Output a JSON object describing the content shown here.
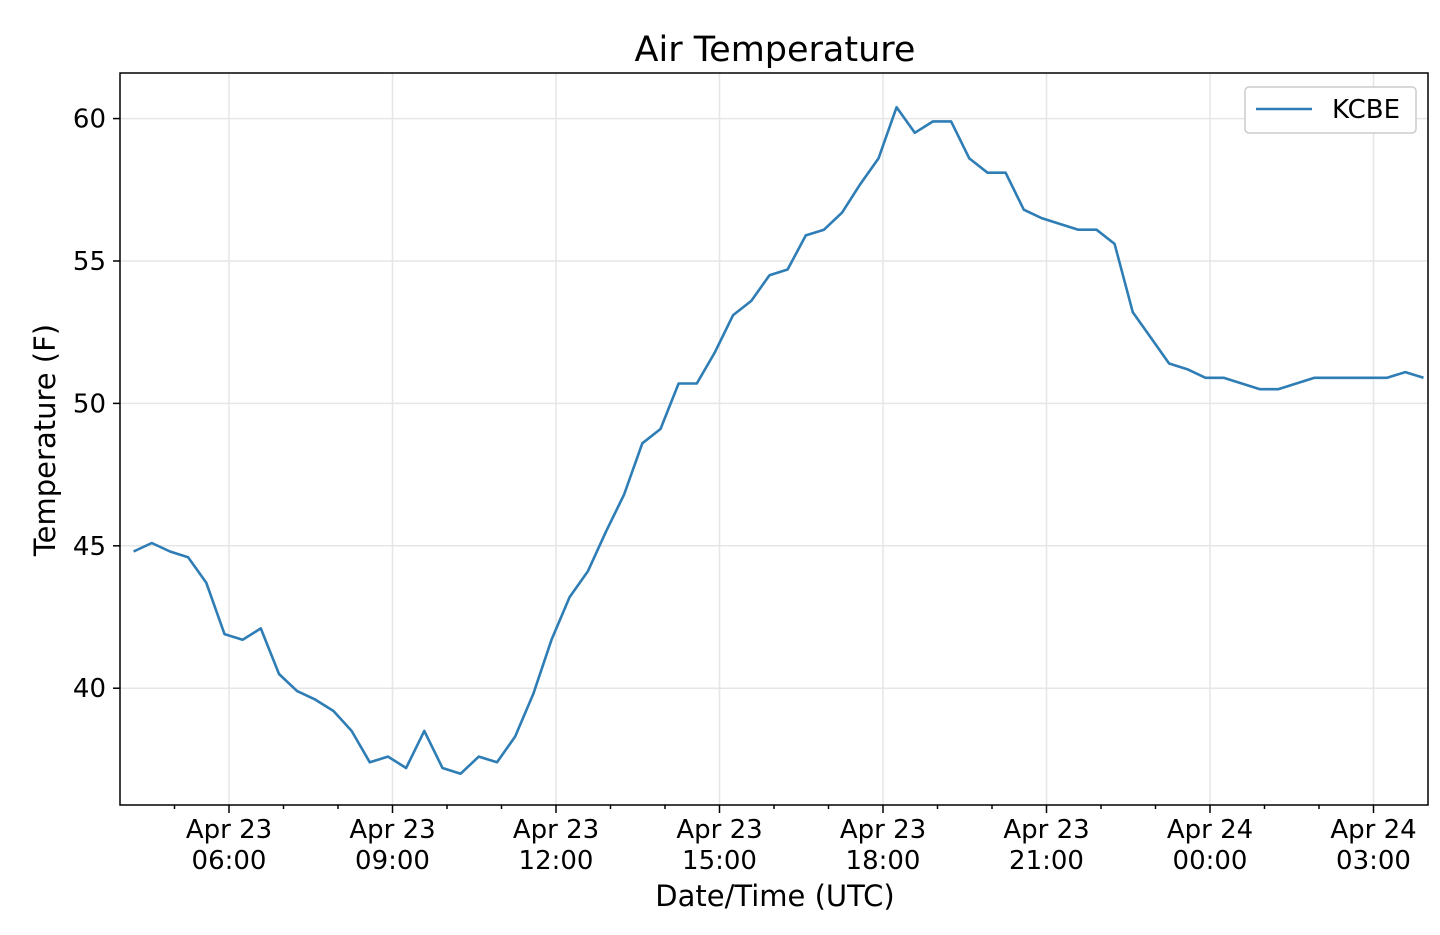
{
  "chart_data": {
    "type": "line",
    "title": "Air Temperature",
    "xlabel": "Date/Time (UTC)",
    "ylabel": "Temperature (F)",
    "x_type": "datetime",
    "xlim": [
      "2023-04-23T04:00",
      "2023-04-24T04:00"
    ],
    "ylim": [
      35.9,
      61.6
    ],
    "grid": true,
    "legend": "top-right",
    "yticks": [
      40,
      45,
      50,
      55,
      60
    ],
    "xticks": [
      {
        "value": "2023-04-23T06:00",
        "label": [
          "Apr 23",
          "06:00"
        ]
      },
      {
        "value": "2023-04-23T09:00",
        "label": [
          "Apr 23",
          "09:00"
        ]
      },
      {
        "value": "2023-04-23T12:00",
        "label": [
          "Apr 23",
          "12:00"
        ]
      },
      {
        "value": "2023-04-23T15:00",
        "label": [
          "Apr 23",
          "15:00"
        ]
      },
      {
        "value": "2023-04-23T18:00",
        "label": [
          "Apr 23",
          "18:00"
        ]
      },
      {
        "value": "2023-04-23T21:00",
        "label": [
          "Apr 23",
          "21:00"
        ]
      },
      {
        "value": "2023-04-24T00:00",
        "label": [
          "Apr 24",
          "00:00"
        ]
      },
      {
        "value": "2023-04-24T03:00",
        "label": [
          "Apr 24",
          "03:00"
        ]
      }
    ],
    "series": [
      {
        "name": "KCBE",
        "color": "#2e7db5",
        "x": [
          "2023-04-23T04:15",
          "2023-04-23T04:35",
          "2023-04-23T04:55",
          "2023-04-23T05:15",
          "2023-04-23T05:35",
          "2023-04-23T05:55",
          "2023-04-23T06:15",
          "2023-04-23T06:35",
          "2023-04-23T06:55",
          "2023-04-23T07:15",
          "2023-04-23T07:35",
          "2023-04-23T07:55",
          "2023-04-23T08:15",
          "2023-04-23T08:35",
          "2023-04-23T08:55",
          "2023-04-23T09:15",
          "2023-04-23T09:35",
          "2023-04-23T09:55",
          "2023-04-23T10:15",
          "2023-04-23T10:35",
          "2023-04-23T10:55",
          "2023-04-23T11:15",
          "2023-04-23T11:35",
          "2023-04-23T11:55",
          "2023-04-23T12:15",
          "2023-04-23T12:35",
          "2023-04-23T12:55",
          "2023-04-23T13:15",
          "2023-04-23T13:35",
          "2023-04-23T13:55",
          "2023-04-23T14:15",
          "2023-04-23T14:35",
          "2023-04-23T14:55",
          "2023-04-23T15:15",
          "2023-04-23T15:35",
          "2023-04-23T15:55",
          "2023-04-23T16:15",
          "2023-04-23T16:35",
          "2023-04-23T16:55",
          "2023-04-23T17:15",
          "2023-04-23T17:35",
          "2023-04-23T17:55",
          "2023-04-23T18:15",
          "2023-04-23T18:35",
          "2023-04-23T18:55",
          "2023-04-23T19:15",
          "2023-04-23T19:35",
          "2023-04-23T19:55",
          "2023-04-23T20:15",
          "2023-04-23T20:35",
          "2023-04-23T20:55",
          "2023-04-23T21:15",
          "2023-04-23T21:35",
          "2023-04-23T21:55",
          "2023-04-23T22:15",
          "2023-04-23T22:35",
          "2023-04-23T22:55",
          "2023-04-23T23:15",
          "2023-04-23T23:35",
          "2023-04-23T23:55",
          "2023-04-24T00:15",
          "2023-04-24T00:35",
          "2023-04-24T00:55",
          "2023-04-24T01:15",
          "2023-04-24T01:35",
          "2023-04-24T01:55",
          "2023-04-24T02:15",
          "2023-04-24T02:35",
          "2023-04-24T02:55",
          "2023-04-24T03:15",
          "2023-04-24T03:35",
          "2023-04-24T03:55"
        ],
        "y": [
          44.8,
          45.1,
          44.8,
          44.6,
          43.7,
          41.9,
          41.7,
          42.1,
          40.5,
          39.9,
          39.6,
          39.2,
          38.5,
          37.4,
          37.6,
          37.2,
          38.5,
          37.2,
          37.0,
          37.6,
          37.4,
          38.3,
          39.8,
          41.7,
          43.2,
          44.1,
          45.5,
          46.8,
          48.6,
          49.1,
          50.7,
          50.7,
          51.8,
          53.1,
          53.6,
          54.5,
          54.7,
          55.9,
          56.1,
          56.7,
          57.7,
          58.6,
          60.4,
          59.5,
          59.9,
          59.9,
          58.6,
          58.1,
          58.1,
          56.8,
          56.5,
          56.3,
          56.1,
          56.1,
          55.6,
          53.2,
          52.3,
          51.4,
          51.2,
          50.9,
          50.9,
          50.7,
          50.5,
          50.5,
          50.7,
          50.9,
          50.9,
          50.9,
          50.9,
          50.9,
          51.1,
          50.9
        ]
      }
    ]
  }
}
